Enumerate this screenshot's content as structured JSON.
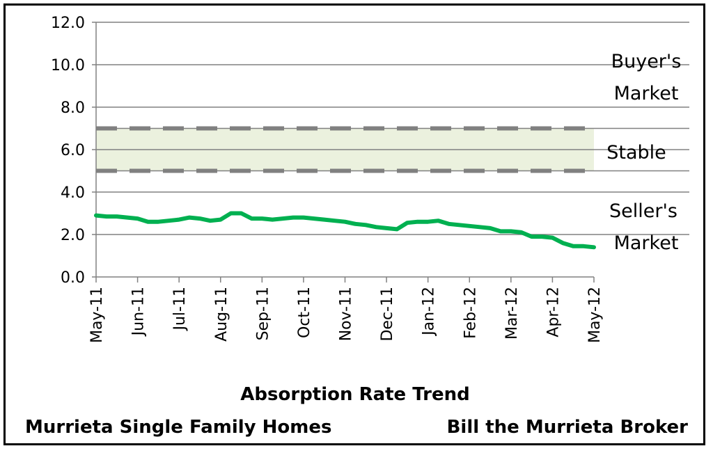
{
  "chart_data": {
    "type": "line",
    "title": "Absorption Rate Trend",
    "subtitle_left": "Murrieta Single Family Homes",
    "subtitle_right": "Bill the Murrieta Broker",
    "xlabel": "",
    "ylabel": "",
    "ylim": [
      0,
      12
    ],
    "yticks": [
      "0.0",
      "2.0",
      "4.0",
      "6.0",
      "8.0",
      "10.0",
      "12.0"
    ],
    "categories": [
      "May-11",
      "Jun-11",
      "Jul-11",
      "Aug-11",
      "Sep-11",
      "Oct-11",
      "Nov-11",
      "Dec-11",
      "Jan-12",
      "Feb-12",
      "Mar-12",
      "Apr-12",
      "May-12"
    ],
    "grid": true,
    "series": [
      {
        "color": "#00b050",
        "x": [
          0,
          0.25,
          0.5,
          0.75,
          1,
          1.25,
          1.5,
          1.75,
          2,
          2.25,
          2.5,
          2.75,
          3,
          3.25,
          3.5,
          3.75,
          4,
          4.25,
          4.5,
          4.75,
          5,
          5.25,
          5.5,
          5.75,
          6,
          6.25,
          6.5,
          6.75,
          7,
          7.25,
          7.5,
          7.75,
          8,
          8.25,
          8.5,
          8.75,
          9,
          9.25,
          9.5,
          9.75,
          10,
          10.25,
          10.5,
          10.75,
          11,
          11.25,
          11.5,
          11.75,
          12
        ],
        "values": [
          2.9,
          2.85,
          2.85,
          2.8,
          2.75,
          2.6,
          2.6,
          2.65,
          2.7,
          2.8,
          2.75,
          2.65,
          2.7,
          3.0,
          3.0,
          2.75,
          2.75,
          2.7,
          2.75,
          2.8,
          2.8,
          2.75,
          2.7,
          2.65,
          2.6,
          2.5,
          2.45,
          2.35,
          2.3,
          2.25,
          2.55,
          2.6,
          2.6,
          2.65,
          2.5,
          2.45,
          2.4,
          2.35,
          2.3,
          2.15,
          2.15,
          2.1,
          1.9,
          1.9,
          1.85,
          1.6,
          1.45,
          1.45,
          1.4
        ]
      }
    ],
    "stable_band": {
      "from": 5.0,
      "to": 7.0,
      "fill": "#ebf1de",
      "line_color": "#808080"
    },
    "zones": [
      {
        "lines": [
          "Buyer's",
          "Market"
        ]
      },
      {
        "lines": [
          "Stable"
        ]
      },
      {
        "lines": [
          "Seller's",
          "Market"
        ]
      }
    ]
  }
}
